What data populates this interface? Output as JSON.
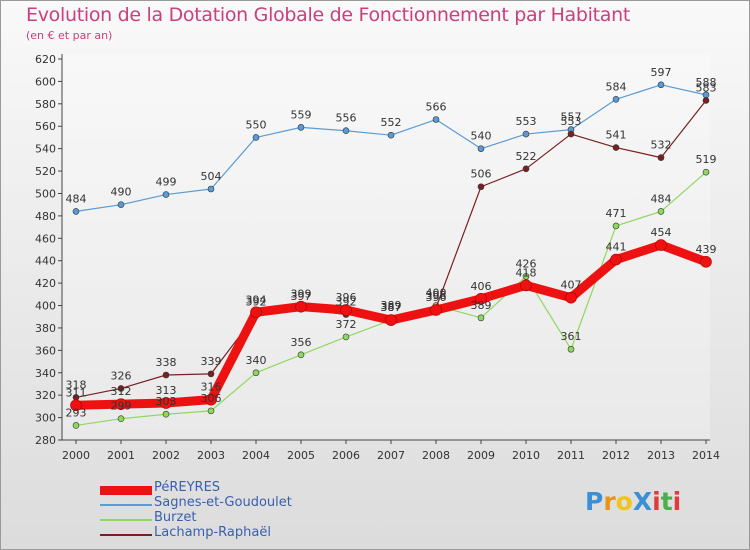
{
  "title": "Evolution de la Dotation Globale de Fonctionnement par Habitant",
  "subtitle": "(en € et par an)",
  "logo": {
    "text": "ProXiti",
    "letters": [
      "P",
      "r",
      "o",
      "X",
      "i",
      "t",
      "i"
    ],
    "colors": [
      "#3a8fd6",
      "#e8931a",
      "#f0c419",
      "#3a8fd6",
      "#e03a3a",
      "#4cae4c",
      "#e03a3a"
    ]
  },
  "chart_data": {
    "type": "line",
    "title": "Evolution de la Dotation Globale de Fonctionnement par Habitant",
    "subtitle": "(en € et par an)",
    "x": [
      "2000",
      "2001",
      "2002",
      "2003",
      "2004",
      "2005",
      "2006",
      "2007",
      "2008",
      "2009",
      "2010",
      "2011",
      "2012",
      "2013",
      "2014"
    ],
    "ylim": [
      280,
      620
    ],
    "yticks": [
      280,
      300,
      320,
      340,
      360,
      380,
      400,
      420,
      440,
      460,
      480,
      500,
      520,
      540,
      560,
      580,
      600,
      620
    ],
    "grid": false,
    "legend_position": "bottom-left",
    "series": [
      {
        "name": "Sagnes-et-Goudoulet",
        "color": "#5b9bd5",
        "width": 1.2,
        "values": [
          484,
          490,
          499,
          504,
          550,
          559,
          556,
          552,
          566,
          540,
          553,
          557,
          584,
          597,
          588
        ]
      },
      {
        "name": "Burzet",
        "color": "#8fd860",
        "width": 1.2,
        "values": [
          293,
          299,
          303,
          306,
          340,
          356,
          372,
          387,
          400,
          389,
          426,
          361,
          471,
          484,
          519
        ]
      },
      {
        "name": "Lachamp-Raphaël",
        "color": "#7a2020",
        "width": 1.2,
        "values": [
          318,
          326,
          338,
          339,
          392,
          397,
          392,
          389,
          398,
          506,
          522,
          553,
          541,
          532,
          583
        ]
      },
      {
        "name": "PéREYRES",
        "color": "#ee1111",
        "width": 9,
        "values": [
          311,
          312,
          313,
          316,
          394,
          399,
          396,
          387,
          396,
          406,
          418,
          407,
          441,
          454,
          439
        ]
      }
    ],
    "legend": [
      {
        "name": "PéREYRES",
        "color": "#ee1111"
      },
      {
        "name": "Sagnes-et-Goudoulet",
        "color": "#5b9bd5"
      },
      {
        "name": "Burzet",
        "color": "#8fd860"
      },
      {
        "name": "Lachamp-Raphaël",
        "color": "#7a2020"
      }
    ]
  }
}
